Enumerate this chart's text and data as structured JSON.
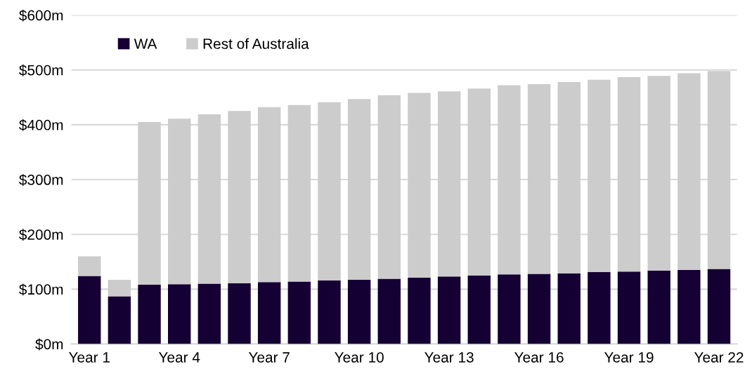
{
  "chart_data": {
    "type": "bar",
    "stacked": true,
    "categories": [
      "Year 1",
      null,
      null,
      "Year 4",
      null,
      null,
      "Year 7",
      null,
      null,
      "Year 10",
      null,
      null,
      "Year 13",
      null,
      null,
      "Year 16",
      null,
      null,
      "Year 19",
      null,
      null,
      "Year 22"
    ],
    "series": [
      {
        "name": "WA",
        "color": "#140033",
        "values": [
          124,
          87,
          108,
          109,
          110,
          111,
          113,
          114,
          116,
          117,
          119,
          121,
          123,
          125,
          127,
          128,
          129,
          131,
          132,
          134,
          135,
          137
        ]
      },
      {
        "name": "Rest of Australia",
        "color": "#cccccc",
        "values": [
          36,
          30,
          297,
          302,
          309,
          314,
          319,
          322,
          325,
          330,
          335,
          337,
          338,
          341,
          345,
          346,
          349,
          351,
          355,
          355,
          359,
          361
        ]
      }
    ],
    "ylim": [
      0,
      600
    ],
    "yticks": [
      {
        "value": 0,
        "label": "$0m"
      },
      {
        "value": 100,
        "label": "$100m"
      },
      {
        "value": 200,
        "label": "$200m"
      },
      {
        "value": 300,
        "label": "$300m"
      },
      {
        "value": 400,
        "label": "$400m"
      },
      {
        "value": 500,
        "label": "$500m"
      },
      {
        "value": 600,
        "label": "$600m"
      }
    ],
    "grid": "y",
    "legend": "top left"
  }
}
